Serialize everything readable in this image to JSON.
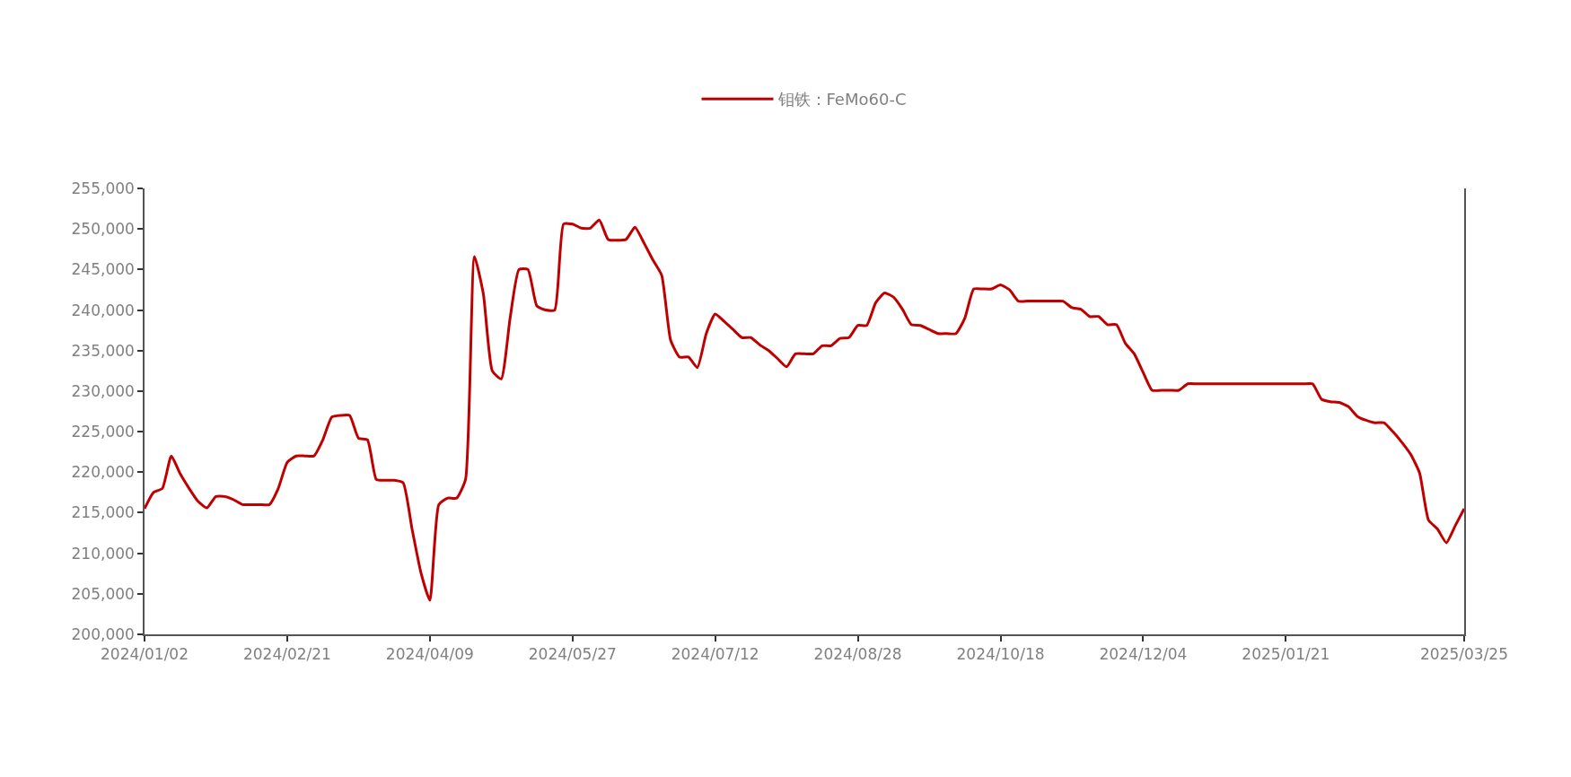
{
  "chart_data": {
    "type": "line",
    "categories": [
      "2024/01/02",
      null,
      null,
      null,
      null,
      null,
      null,
      null,
      null,
      null,
      null,
      null,
      null,
      null,
      null,
      null,
      "2024/02/21",
      null,
      null,
      null,
      null,
      null,
      null,
      null,
      null,
      null,
      null,
      null,
      null,
      null,
      null,
      null,
      "2024/04/09",
      null,
      null,
      null,
      null,
      null,
      null,
      null,
      null,
      null,
      null,
      null,
      null,
      null,
      null,
      null,
      "2024/05/27",
      null,
      null,
      null,
      null,
      null,
      null,
      null,
      null,
      null,
      null,
      null,
      null,
      null,
      null,
      null,
      "2024/07/12",
      null,
      null,
      null,
      null,
      null,
      null,
      null,
      null,
      null,
      null,
      null,
      null,
      null,
      null,
      null,
      "2024/08/28",
      null,
      null,
      null,
      null,
      null,
      null,
      null,
      null,
      null,
      null,
      null,
      null,
      null,
      null,
      null,
      "2024/10/18",
      null,
      null,
      null,
      null,
      null,
      null,
      null,
      null,
      null,
      null,
      null,
      null,
      null,
      null,
      null,
      "2024/12/04",
      null,
      null,
      null,
      null,
      null,
      null,
      null,
      null,
      null,
      null,
      null,
      null,
      null,
      null,
      null,
      "2025/01/21",
      null,
      null,
      null,
      null,
      null,
      null,
      null,
      null,
      null,
      null,
      null,
      null,
      null,
      null,
      null,
      null,
      null,
      null,
      null,
      "2025/03/25"
    ],
    "series": [
      {
        "name": "钼铁：FeMo60-C",
        "color": "#c00000",
        "values": [
          215500,
          217500,
          218000,
          222000,
          219800,
          218000,
          216400,
          215600,
          217000,
          217000,
          216600,
          216000,
          216000,
          216000,
          216000,
          218000,
          221200,
          222000,
          222000,
          222000,
          224000,
          226800,
          227000,
          227000,
          224200,
          224000,
          219100,
          219000,
          219000,
          218700,
          213000,
          207600,
          204200,
          216000,
          216800,
          216800,
          219100,
          246600,
          242000,
          232500,
          231500,
          239000,
          245000,
          245000,
          240500,
          240000,
          240000,
          250600,
          250600,
          250100,
          250100,
          251100,
          248700,
          248600,
          248700,
          250200,
          248300,
          246200,
          244300,
          236300,
          234200,
          234200,
          232900,
          237100,
          239500,
          238600,
          237600,
          236600,
          236600,
          235700,
          235000,
          234000,
          233000,
          234600,
          234600,
          234600,
          235600,
          235600,
          236500,
          236600,
          238100,
          238100,
          240900,
          242100,
          241600,
          240100,
          238200,
          238100,
          237600,
          237100,
          237100,
          237100,
          239000,
          242600,
          242600,
          242600,
          243100,
          242500,
          241100,
          241100,
          241100,
          241100,
          241100,
          241100,
          240300,
          240100,
          239200,
          239200,
          238200,
          238200,
          235900,
          234600,
          232300,
          230100,
          230100,
          230100,
          230100,
          230900,
          230900,
          230900,
          230900,
          230900,
          230900,
          230900,
          230900,
          230900,
          230900,
          230900,
          230900,
          230900,
          230900,
          230900,
          229000,
          228700,
          228600,
          228100,
          226900,
          226400,
          226100,
          226100,
          225000,
          223700,
          222200,
          219900,
          214100,
          213000,
          211300,
          213400,
          215500
        ]
      }
    ],
    "ylim": [
      200000,
      255000
    ],
    "yticks": [
      {
        "value": 200000,
        "label": "200,000"
      },
      {
        "value": 205000,
        "label": "205,000"
      },
      {
        "value": 210000,
        "label": "210,000"
      },
      {
        "value": 215000,
        "label": "215,000"
      },
      {
        "value": 220000,
        "label": "220,000"
      },
      {
        "value": 225000,
        "label": "225,000"
      },
      {
        "value": 230000,
        "label": "230,000"
      },
      {
        "value": 235000,
        "label": "235,000"
      },
      {
        "value": 240000,
        "label": "240,000"
      },
      {
        "value": 245000,
        "label": "245,000"
      },
      {
        "value": 250000,
        "label": "250,000"
      },
      {
        "value": 255000,
        "label": "255,000"
      }
    ],
    "legend": "top",
    "marker": "none",
    "line_style": "solid"
  }
}
